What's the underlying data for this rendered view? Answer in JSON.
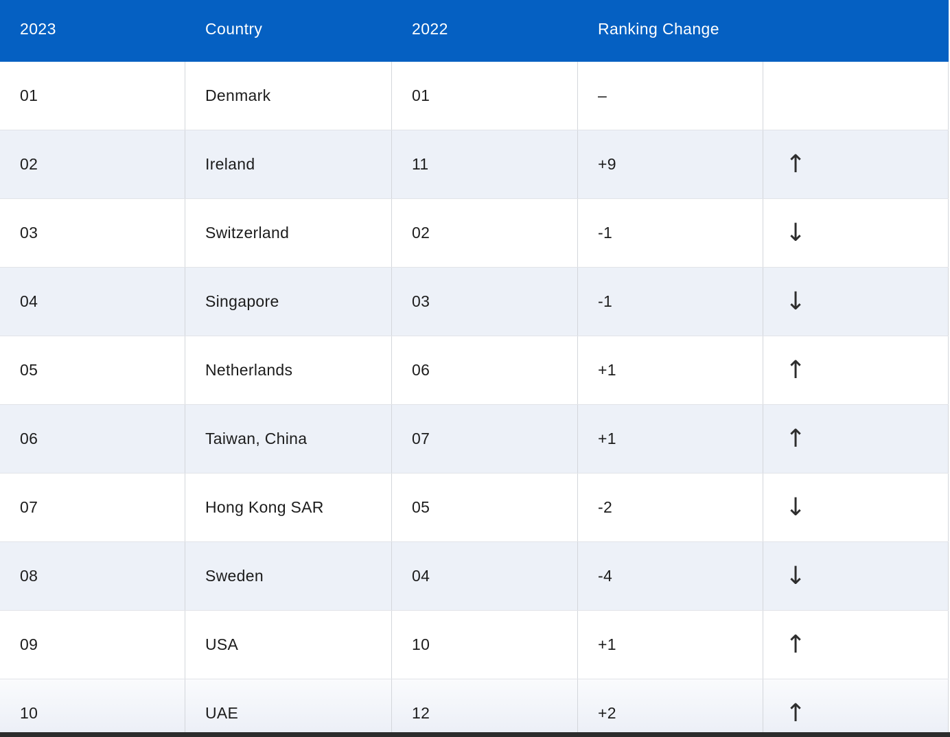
{
  "table": {
    "columns": [
      {
        "label": "2023"
      },
      {
        "label": "Country"
      },
      {
        "label": "2022"
      },
      {
        "label": "Ranking Change"
      },
      {
        "label": ""
      }
    ],
    "rows": [
      {
        "rank2023": "01",
        "country": "Denmark",
        "rank2022": "01",
        "change": "–",
        "trend": "none"
      },
      {
        "rank2023": "02",
        "country": "Ireland",
        "rank2022": "11",
        "change": "+9",
        "trend": "up"
      },
      {
        "rank2023": "03",
        "country": "Switzerland",
        "rank2022": "02",
        "change": "-1",
        "trend": "down"
      },
      {
        "rank2023": "04",
        "country": "Singapore",
        "rank2022": "03",
        "change": "-1",
        "trend": "down"
      },
      {
        "rank2023": "05",
        "country": "Netherlands",
        "rank2022": "06",
        "change": "+1",
        "trend": "up"
      },
      {
        "rank2023": "06",
        "country": "Taiwan, China",
        "rank2022": "07",
        "change": "+1",
        "trend": "up"
      },
      {
        "rank2023": "07",
        "country": "Hong Kong SAR",
        "rank2022": "05",
        "change": "-2",
        "trend": "down"
      },
      {
        "rank2023": "08",
        "country": "Sweden",
        "rank2022": "04",
        "change": "-4",
        "trend": "down"
      },
      {
        "rank2023": "09",
        "country": "USA",
        "rank2022": "10",
        "change": "+1",
        "trend": "up"
      },
      {
        "rank2023": "10",
        "country": "UAE",
        "rank2022": "12",
        "change": "+2",
        "trend": "up"
      }
    ],
    "icons": {
      "up": "↑",
      "down": "↓",
      "none": ""
    },
    "colors": {
      "header_bg": "#0560c2",
      "header_text": "#ffffff",
      "row_bg": "#ffffff",
      "row_alt_bg": "#edf1f8",
      "text": "#1c1c1c",
      "border_vertical": "#d3d6db",
      "border_horizontal": "#e1e3e8",
      "bottom_bar": "#2c2c2c"
    }
  },
  "chart_data": {
    "type": "table",
    "columns": [
      "2023",
      "Country",
      "2022",
      "Ranking Change",
      ""
    ],
    "rows": [
      [
        "01",
        "Denmark",
        "01",
        "–",
        ""
      ],
      [
        "02",
        "Ireland",
        "11",
        "+9",
        "up"
      ],
      [
        "03",
        "Switzerland",
        "02",
        "-1",
        "down"
      ],
      [
        "04",
        "Singapore",
        "03",
        "-1",
        "down"
      ],
      [
        "05",
        "Netherlands",
        "06",
        "+1",
        "up"
      ],
      [
        "06",
        "Taiwan, China",
        "07",
        "+1",
        "up"
      ],
      [
        "07",
        "Hong Kong SAR",
        "05",
        "-2",
        "down"
      ],
      [
        "08",
        "Sweden",
        "04",
        "-4",
        "down"
      ],
      [
        "09",
        "USA",
        "10",
        "+1",
        "up"
      ],
      [
        "10",
        "UAE",
        "12",
        "+2",
        "up"
      ]
    ]
  }
}
